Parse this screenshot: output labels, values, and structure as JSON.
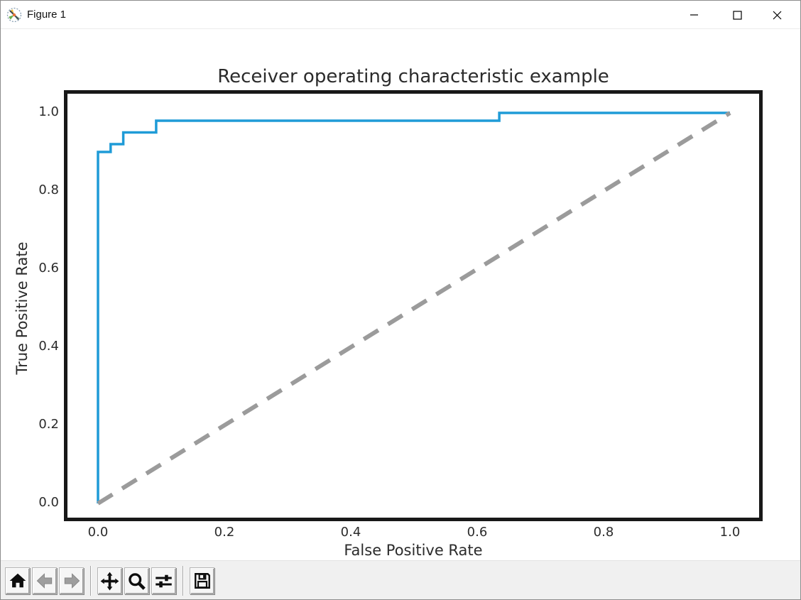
{
  "window": {
    "title": "Figure 1",
    "app_icon": "matplotlib-logo-icon",
    "controls": {
      "minimize": "minimize",
      "maximize": "maximize",
      "close": "close"
    }
  },
  "chart_data": {
    "type": "line",
    "title": "Receiver operating characteristic example",
    "xlabel": "False Positive Rate",
    "ylabel": "True Positive Rate",
    "xlim": [
      -0.05,
      1.05
    ],
    "ylim": [
      -0.04,
      1.05
    ],
    "x_ticks": [
      "0.0",
      "0.2",
      "0.4",
      "0.6",
      "0.8",
      "1.0"
    ],
    "y_ticks": [
      "1.0",
      "0.8",
      "0.6",
      "0.4",
      "0.2",
      "0.0"
    ],
    "grid": false,
    "legend": "none",
    "axes_color": "#181818",
    "series": [
      {
        "name": "roc-curve",
        "style": "step-solid",
        "color": "#1f9bd7",
        "linewidth": 3.5,
        "dash": "",
        "points": [
          [
            0,
            0
          ],
          [
            0,
            0.9
          ],
          [
            0.02,
            0.9
          ],
          [
            0.02,
            0.92
          ],
          [
            0.04,
            0.92
          ],
          [
            0.04,
            0.95
          ],
          [
            0.092,
            0.95
          ],
          [
            0.092,
            0.98
          ],
          [
            0.635,
            0.98
          ],
          [
            0.635,
            1.0
          ],
          [
            1.0,
            1.0
          ]
        ]
      },
      {
        "name": "chance-diagonal",
        "style": "dashed",
        "color": "#9b9b9b",
        "linewidth": 6,
        "dash": "24 16",
        "points": [
          [
            0,
            0
          ],
          [
            1,
            1
          ]
        ]
      }
    ]
  },
  "toolbar": {
    "buttons": [
      {
        "icon": "home-icon",
        "action": "home",
        "enabled": true
      },
      {
        "icon": "back-arrow-icon",
        "action": "back",
        "enabled": false
      },
      {
        "icon": "forward-arrow-icon",
        "action": "forward",
        "enabled": false
      },
      {
        "icon": "pan-icon",
        "action": "pan",
        "enabled": true
      },
      {
        "icon": "zoom-icon",
        "action": "zoom-to-rect",
        "enabled": true
      },
      {
        "icon": "subplots-sliders-icon",
        "action": "configure-subplots",
        "enabled": true
      },
      {
        "icon": "save-icon",
        "action": "save",
        "enabled": true
      }
    ]
  }
}
